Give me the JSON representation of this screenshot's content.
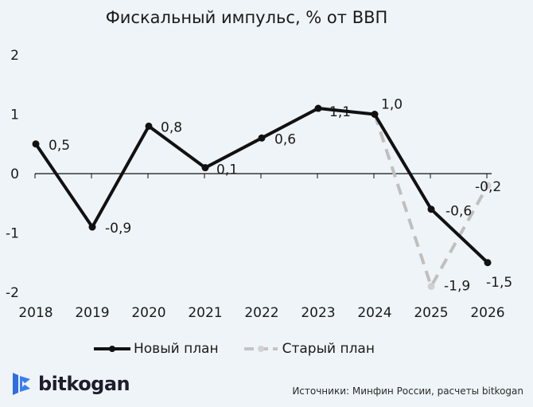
{
  "chart_data": {
    "type": "line",
    "title": "Фискальный импульс, % от ВВП",
    "categories": [
      "2018",
      "2019",
      "2020",
      "2021",
      "2022",
      "2023",
      "2024",
      "2025",
      "2026"
    ],
    "series": [
      {
        "name": "Новый план",
        "color": "#111111",
        "style": "solid",
        "values": [
          0.5,
          -0.9,
          0.8,
          0.1,
          0.6,
          1.1,
          1.0,
          -0.6,
          -1.5
        ],
        "labels": [
          "0,5",
          "-0,9",
          "0,8",
          "0,1",
          "0,6",
          "1,1",
          "1,0",
          "-0,6",
          "-1,5"
        ]
      },
      {
        "name": "Старый план",
        "color": "#bfbfbf",
        "style": "dashed",
        "values": [
          null,
          null,
          null,
          null,
          null,
          null,
          1.0,
          -1.9,
          -0.2
        ],
        "labels": [
          null,
          null,
          null,
          null,
          null,
          null,
          null,
          "-1,9",
          "-0,2"
        ]
      }
    ],
    "xlabel": "",
    "ylabel": "",
    "ylim": [
      -2,
      2
    ],
    "yticks": [
      "2",
      "1",
      "0",
      "-1",
      "-2"
    ],
    "grid": false,
    "legend_position": "bottom"
  },
  "legend": {
    "new_plan": "Новый план",
    "old_plan": "Старый план"
  },
  "brand": {
    "name": "bitkogan",
    "color": "#2f6fe0"
  },
  "source": "Источники: Минфин России, расчеты bitkogan"
}
